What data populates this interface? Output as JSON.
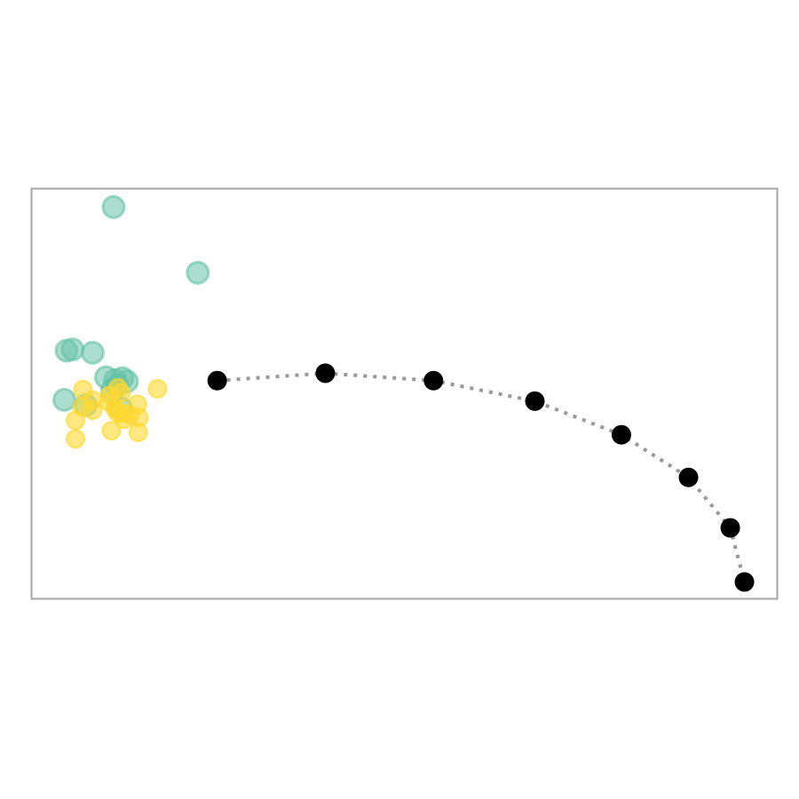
{
  "chart_data": {
    "type": "scatter",
    "title": "",
    "xlabel": "",
    "ylabel": "",
    "xlim": [
      0,
      100
    ],
    "ylim": [
      0,
      100
    ],
    "grid": false,
    "legend": "none",
    "colors": {
      "cluster_a": "#66c2a5",
      "cluster_b": "#ffd92f",
      "path_points": "#000000",
      "path_line": "#999999",
      "frame": "#a6a6a6"
    },
    "series": [
      {
        "points": [
          {
            "x": 11.0,
            "y": 95.5
          },
          {
            "x": 22.3,
            "y": 79.5
          },
          {
            "x": 4.7,
            "y": 60.5
          },
          {
            "x": 5.5,
            "y": 60.8
          },
          {
            "x": 8.2,
            "y": 60.0
          },
          {
            "x": 10.0,
            "y": 54.0
          },
          {
            "x": 11.2,
            "y": 53.3
          },
          {
            "x": 12.2,
            "y": 53.8
          },
          {
            "x": 12.8,
            "y": 53.0
          },
          {
            "x": 11.5,
            "y": 52.0
          },
          {
            "x": 10.8,
            "y": 50.8
          },
          {
            "x": 4.4,
            "y": 48.5
          },
          {
            "x": 7.3,
            "y": 47.2
          },
          {
            "x": 12.0,
            "y": 46.5
          }
        ]
      },
      {
        "points": [
          {
            "x": 6.9,
            "y": 51.0
          },
          {
            "x": 11.6,
            "y": 51.4
          },
          {
            "x": 12.0,
            "y": 50.2
          },
          {
            "x": 16.9,
            "y": 51.2
          },
          {
            "x": 10.5,
            "y": 49.6
          },
          {
            "x": 8.2,
            "y": 48.4
          },
          {
            "x": 10.4,
            "y": 48.0
          },
          {
            "x": 14.2,
            "y": 47.4
          },
          {
            "x": 6.8,
            "y": 46.8
          },
          {
            "x": 8.2,
            "y": 46.0
          },
          {
            "x": 11.2,
            "y": 46.4
          },
          {
            "x": 11.5,
            "y": 45.5
          },
          {
            "x": 12.2,
            "y": 45.2
          },
          {
            "x": 13.2,
            "y": 44.8
          },
          {
            "x": 14.4,
            "y": 44.2
          },
          {
            "x": 5.9,
            "y": 43.5
          },
          {
            "x": 12.4,
            "y": 43.8
          },
          {
            "x": 10.7,
            "y": 41.0
          },
          {
            "x": 14.3,
            "y": 40.6
          },
          {
            "x": 5.9,
            "y": 39.0
          }
        ]
      },
      {
        "points": [
          {
            "x": 24.9,
            "y": 53.2
          },
          {
            "x": 39.4,
            "y": 55.0
          },
          {
            "x": 53.9,
            "y": 53.2
          },
          {
            "x": 67.5,
            "y": 48.2
          },
          {
            "x": 79.1,
            "y": 40.0
          },
          {
            "x": 88.1,
            "y": 29.6
          },
          {
            "x": 93.7,
            "y": 17.3
          },
          {
            "x": 95.6,
            "y": 4.1
          }
        ]
      }
    ]
  }
}
